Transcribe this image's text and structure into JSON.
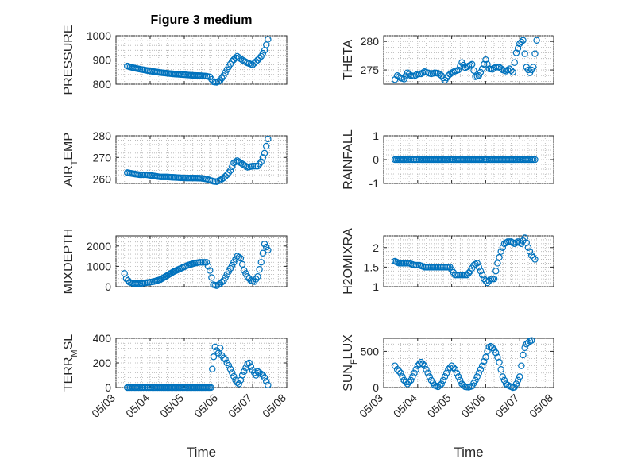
{
  "figure": {
    "title": "Figure 3 medium",
    "marker_color": "#0072BD"
  },
  "chart_data": [
    {
      "type": "scatter",
      "name": "pressure",
      "title": "Figure 3 medium",
      "ylabel": "PRESSURE",
      "xlabel": "",
      "xlim": [
        "05/03",
        "05/08"
      ],
      "ylim": [
        800,
        1000
      ],
      "yticks": [
        800,
        900,
        1000
      ],
      "xticks": [],
      "grid": true,
      "x": [
        3.33,
        3.5,
        3.7,
        3.9,
        4.1,
        4.3,
        4.5,
        4.7,
        4.9,
        5.1,
        5.3,
        5.5,
        5.65,
        5.75,
        5.85,
        5.95,
        6.05,
        6.15,
        6.25,
        6.4,
        6.55,
        6.7,
        6.85,
        7.0,
        7.15,
        7.25,
        7.35,
        7.45
      ],
      "y": [
        875,
        868,
        862,
        857,
        852,
        848,
        845,
        842,
        840,
        838,
        836,
        835,
        833,
        830,
        810,
        808,
        815,
        835,
        860,
        895,
        915,
        900,
        888,
        880,
        900,
        915,
        940,
        985
      ]
    },
    {
      "type": "scatter",
      "name": "theta",
      "ylabel": "THETA",
      "xlabel": "",
      "xlim": [
        "05/03",
        "05/08"
      ],
      "ylim": [
        272.5,
        281
      ],
      "yticks": [
        275,
        280
      ],
      "xticks": [],
      "grid": true,
      "x": [
        3.33,
        3.4,
        3.5,
        3.6,
        3.7,
        3.8,
        3.9,
        4.0,
        4.1,
        4.2,
        4.3,
        4.4,
        4.5,
        4.6,
        4.7,
        4.8,
        4.9,
        5.0,
        5.1,
        5.2,
        5.3,
        5.4,
        5.5,
        5.6,
        5.7,
        5.8,
        5.9,
        6.0,
        6.1,
        6.2,
        6.3,
        6.4,
        6.5,
        6.6,
        6.7,
        6.8,
        6.9,
        7.0,
        7.1,
        7.2,
        7.3,
        7.4,
        7.5
      ],
      "y": [
        273.3,
        274.0,
        273.6,
        273.4,
        274.5,
        274.0,
        273.9,
        274.3,
        274.3,
        274.7,
        274.5,
        274.3,
        274.5,
        274.4,
        274.0,
        273.2,
        274.0,
        274.5,
        274.8,
        275.0,
        276.3,
        275.4,
        275.7,
        276.0,
        273.8,
        274.0,
        275.2,
        276.8,
        275.2,
        275.1,
        275.5,
        275.5,
        275.0,
        274.8,
        275.2,
        274.6,
        278.0,
        279.6,
        280.2,
        275.5,
        274.5,
        275.5,
        280.2
      ]
    },
    {
      "type": "scatter",
      "name": "air-temp",
      "ylabel": "AIR_TEMP",
      "xlabel": "",
      "xlim": [
        "05/03",
        "05/08"
      ],
      "ylim": [
        258,
        280
      ],
      "yticks": [
        260,
        270,
        280
      ],
      "xticks": [],
      "grid": true,
      "x": [
        3.33,
        3.5,
        3.7,
        3.9,
        4.1,
        4.3,
        4.5,
        4.7,
        4.9,
        5.1,
        5.3,
        5.5,
        5.65,
        5.75,
        5.85,
        5.95,
        6.05,
        6.15,
        6.25,
        6.35,
        6.45,
        6.55,
        6.7,
        6.85,
        7.0,
        7.15,
        7.25,
        7.35,
        7.45
      ],
      "y": [
        263.0,
        262.5,
        262.0,
        262.0,
        261.5,
        261.0,
        261.0,
        260.8,
        260.6,
        260.5,
        260.5,
        260.4,
        260.0,
        259.5,
        259.0,
        258.8,
        259.5,
        260.5,
        262.0,
        264.0,
        267.5,
        268.5,
        267.0,
        265.5,
        266.0,
        266.0,
        268.0,
        272.0,
        278.5
      ]
    },
    {
      "type": "scatter",
      "name": "rainfall",
      "ylabel": "RAINFALL",
      "xlabel": "",
      "xlim": [
        "05/03",
        "05/08"
      ],
      "ylim": [
        -1,
        1
      ],
      "yticks": [
        -1,
        0,
        1
      ],
      "xticks": [],
      "grid": true,
      "x": [
        3.33,
        3.5,
        3.7,
        3.9,
        4.1,
        4.3,
        4.5,
        4.7,
        4.9,
        5.1,
        5.3,
        5.5,
        5.7,
        5.9,
        6.1,
        6.3,
        6.5,
        6.7,
        6.9,
        7.1,
        7.3,
        7.45
      ],
      "y": [
        0,
        0,
        0,
        0,
        0,
        0,
        0,
        0,
        0,
        0,
        0,
        0,
        0,
        0,
        0,
        0,
        0,
        0,
        0,
        0,
        0,
        0
      ]
    },
    {
      "type": "scatter",
      "name": "mixdepth",
      "ylabel": "MIXDEPTH",
      "xlabel": "",
      "xlim": [
        "05/03",
        "05/08"
      ],
      "ylim": [
        0,
        2500
      ],
      "yticks": [
        0,
        1000,
        2000
      ],
      "xticks": [],
      "grid": true,
      "x": [
        3.25,
        3.3,
        3.4,
        3.5,
        3.7,
        3.9,
        4.1,
        4.3,
        4.5,
        4.7,
        4.9,
        5.1,
        5.3,
        5.45,
        5.55,
        5.65,
        5.75,
        5.85,
        5.95,
        6.05,
        6.15,
        6.25,
        6.35,
        6.45,
        6.55,
        6.65,
        6.75,
        6.85,
        6.95,
        7.05,
        7.15,
        7.25,
        7.35,
        7.45
      ],
      "y": [
        650,
        400,
        220,
        160,
        150,
        200,
        250,
        350,
        550,
        750,
        900,
        1050,
        1150,
        1200,
        1200,
        1200,
        800,
        100,
        50,
        150,
        300,
        600,
        900,
        1200,
        1500,
        1400,
        800,
        500,
        300,
        250,
        500,
        1200,
        2100,
        1800
      ]
    },
    {
      "type": "scatter",
      "name": "h2omixra",
      "ylabel": "H2OMIXRA",
      "xlabel": "",
      "xlim": [
        "05/03",
        "05/08"
      ],
      "ylim": [
        1,
        2.3
      ],
      "yticks": [
        1,
        1.5,
        2
      ],
      "xticks": [],
      "grid": true,
      "x": [
        3.33,
        3.45,
        3.6,
        3.75,
        3.9,
        4.05,
        4.2,
        4.35,
        4.5,
        4.65,
        4.8,
        4.95,
        5.1,
        5.25,
        5.35,
        5.45,
        5.55,
        5.65,
        5.75,
        5.85,
        5.95,
        6.05,
        6.15,
        6.25,
        6.35,
        6.45,
        6.55,
        6.65,
        6.75,
        6.85,
        6.95,
        7.05,
        7.15,
        7.25,
        7.35,
        7.45
      ],
      "y": [
        1.65,
        1.6,
        1.6,
        1.6,
        1.55,
        1.55,
        1.5,
        1.5,
        1.5,
        1.5,
        1.5,
        1.5,
        1.3,
        1.3,
        1.3,
        1.3,
        1.4,
        1.55,
        1.6,
        1.4,
        1.2,
        1.1,
        1.2,
        1.2,
        1.6,
        1.9,
        2.1,
        2.15,
        2.15,
        2.1,
        2.15,
        2.1,
        2.25,
        2.0,
        1.8,
        1.7
      ]
    },
    {
      "type": "scatter",
      "name": "terr-msl",
      "ylabel": "TERR_MSL",
      "xlabel": "Time",
      "xlim": [
        "05/03",
        "05/08"
      ],
      "ylim": [
        0,
        400
      ],
      "yticks": [
        0,
        200,
        400
      ],
      "xticks": [
        "05/03",
        "05/04",
        "05/05",
        "05/06",
        "05/07",
        "05/08"
      ],
      "grid": true,
      "x": [
        3.33,
        3.5,
        3.7,
        3.9,
        4.1,
        4.3,
        4.5,
        4.7,
        4.9,
        5.1,
        5.3,
        5.5,
        5.7,
        5.78,
        5.82,
        5.86,
        5.9,
        5.95,
        6.0,
        6.05,
        6.1,
        6.15,
        6.2,
        6.25,
        6.3,
        6.35,
        6.4,
        6.45,
        6.5,
        6.55,
        6.6,
        6.65,
        6.7,
        6.75,
        6.8,
        6.85,
        6.9,
        6.95,
        7.0,
        7.05,
        7.1,
        7.15,
        7.2,
        7.25,
        7.3,
        7.35,
        7.4,
        7.45
      ],
      "y": [
        0,
        0,
        0,
        0,
        0,
        0,
        0,
        0,
        0,
        0,
        0,
        0,
        0,
        0,
        150,
        250,
        330,
        300,
        280,
        320,
        260,
        240,
        230,
        200,
        180,
        150,
        120,
        90,
        60,
        40,
        30,
        60,
        100,
        130,
        160,
        190,
        200,
        170,
        140,
        120,
        100,
        130,
        120,
        110,
        100,
        80,
        50,
        20
      ]
    },
    {
      "type": "scatter",
      "name": "sun-flux",
      "ylabel": "SUN_FLUX",
      "xlabel": "Time",
      "xlim": [
        "05/03",
        "05/08"
      ],
      "ylim": [
        0,
        680
      ],
      "yticks": [
        0,
        500
      ],
      "xticks": [
        "05/03",
        "05/04",
        "05/05",
        "05/06",
        "05/07",
        "05/08"
      ],
      "grid": true,
      "x": [
        3.33,
        3.4,
        3.5,
        3.6,
        3.7,
        3.8,
        3.9,
        4.0,
        4.1,
        4.2,
        4.3,
        4.4,
        4.5,
        4.6,
        4.7,
        4.8,
        4.9,
        5.0,
        5.1,
        5.2,
        5.3,
        5.4,
        5.5,
        5.6,
        5.7,
        5.8,
        5.9,
        6.0,
        6.05,
        6.1,
        6.15,
        6.2,
        6.25,
        6.3,
        6.35,
        6.4,
        6.45,
        6.5,
        6.6,
        6.7,
        6.75,
        6.8,
        6.85,
        6.9,
        7.0,
        7.05,
        7.1,
        7.15,
        7.2,
        7.25,
        7.3,
        7.35
      ],
      "y": [
        300,
        250,
        200,
        100,
        50,
        100,
        200,
        300,
        350,
        300,
        200,
        100,
        30,
        10,
        50,
        150,
        250,
        300,
        250,
        150,
        50,
        10,
        5,
        20,
        100,
        200,
        300,
        420,
        500,
        560,
        570,
        550,
        520,
        480,
        420,
        350,
        250,
        150,
        50,
        20,
        10,
        0,
        5,
        50,
        150,
        300,
        450,
        550,
        600,
        620,
        640,
        650
      ]
    }
  ]
}
